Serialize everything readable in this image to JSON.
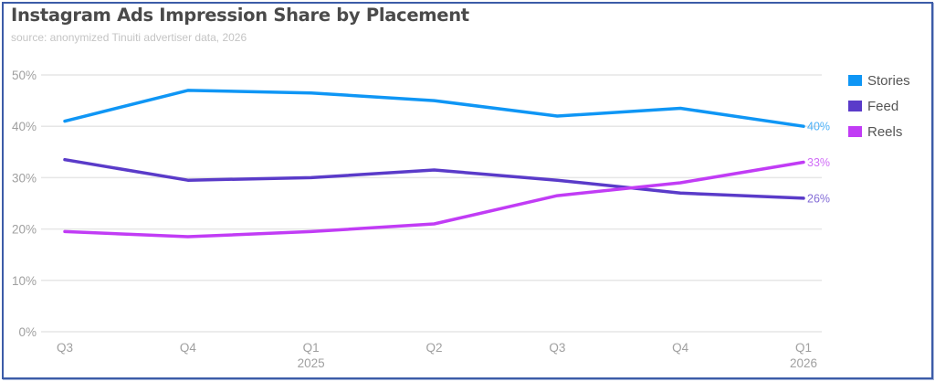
{
  "header": {
    "title": "Instagram Ads Impression Share by Placement",
    "subtitle": "source: anonymized Tinuiti advertiser data, 2026"
  },
  "legend": [
    {
      "label": "Stories",
      "color": "#0f96f5"
    },
    {
      "label": "Feed",
      "color": "#5a3bc9"
    },
    {
      "label": "Reels",
      "color": "#c13cf5"
    }
  ],
  "chart_data": {
    "type": "line",
    "title": "Instagram Ads Impression Share by Placement",
    "subtitle": "source: anonymized Tinuiti advertiser data, 2026",
    "xlabel": "",
    "ylabel": "",
    "x": [
      "Q3",
      "Q4",
      "Q1 2025",
      "Q2",
      "Q3",
      "Q4",
      "Q1 2026"
    ],
    "x_tick_labels": [
      [
        "Q3"
      ],
      [
        "Q4"
      ],
      [
        "Q1",
        "2025"
      ],
      [
        "Q2"
      ],
      [
        "Q3"
      ],
      [
        "Q4"
      ],
      [
        "Q1",
        "2026"
      ]
    ],
    "y_ticks": [
      "0%",
      "10%",
      "20%",
      "30%",
      "40%",
      "50%"
    ],
    "ylim": [
      0,
      50
    ],
    "grid": true,
    "legend_position": "right",
    "series": [
      {
        "name": "Stories",
        "color": "#0f96f5",
        "values": [
          41,
          47,
          46.5,
          45,
          42,
          43.5,
          40
        ],
        "end_label": "40%"
      },
      {
        "name": "Feed",
        "color": "#5a3bc9",
        "values": [
          33.5,
          29.5,
          30,
          31.5,
          29.5,
          27,
          26
        ],
        "end_label": "26%"
      },
      {
        "name": "Reels",
        "color": "#c13cf5",
        "values": [
          19.5,
          18.5,
          19.5,
          21,
          26.5,
          29,
          33
        ],
        "end_label": "33%"
      }
    ]
  }
}
